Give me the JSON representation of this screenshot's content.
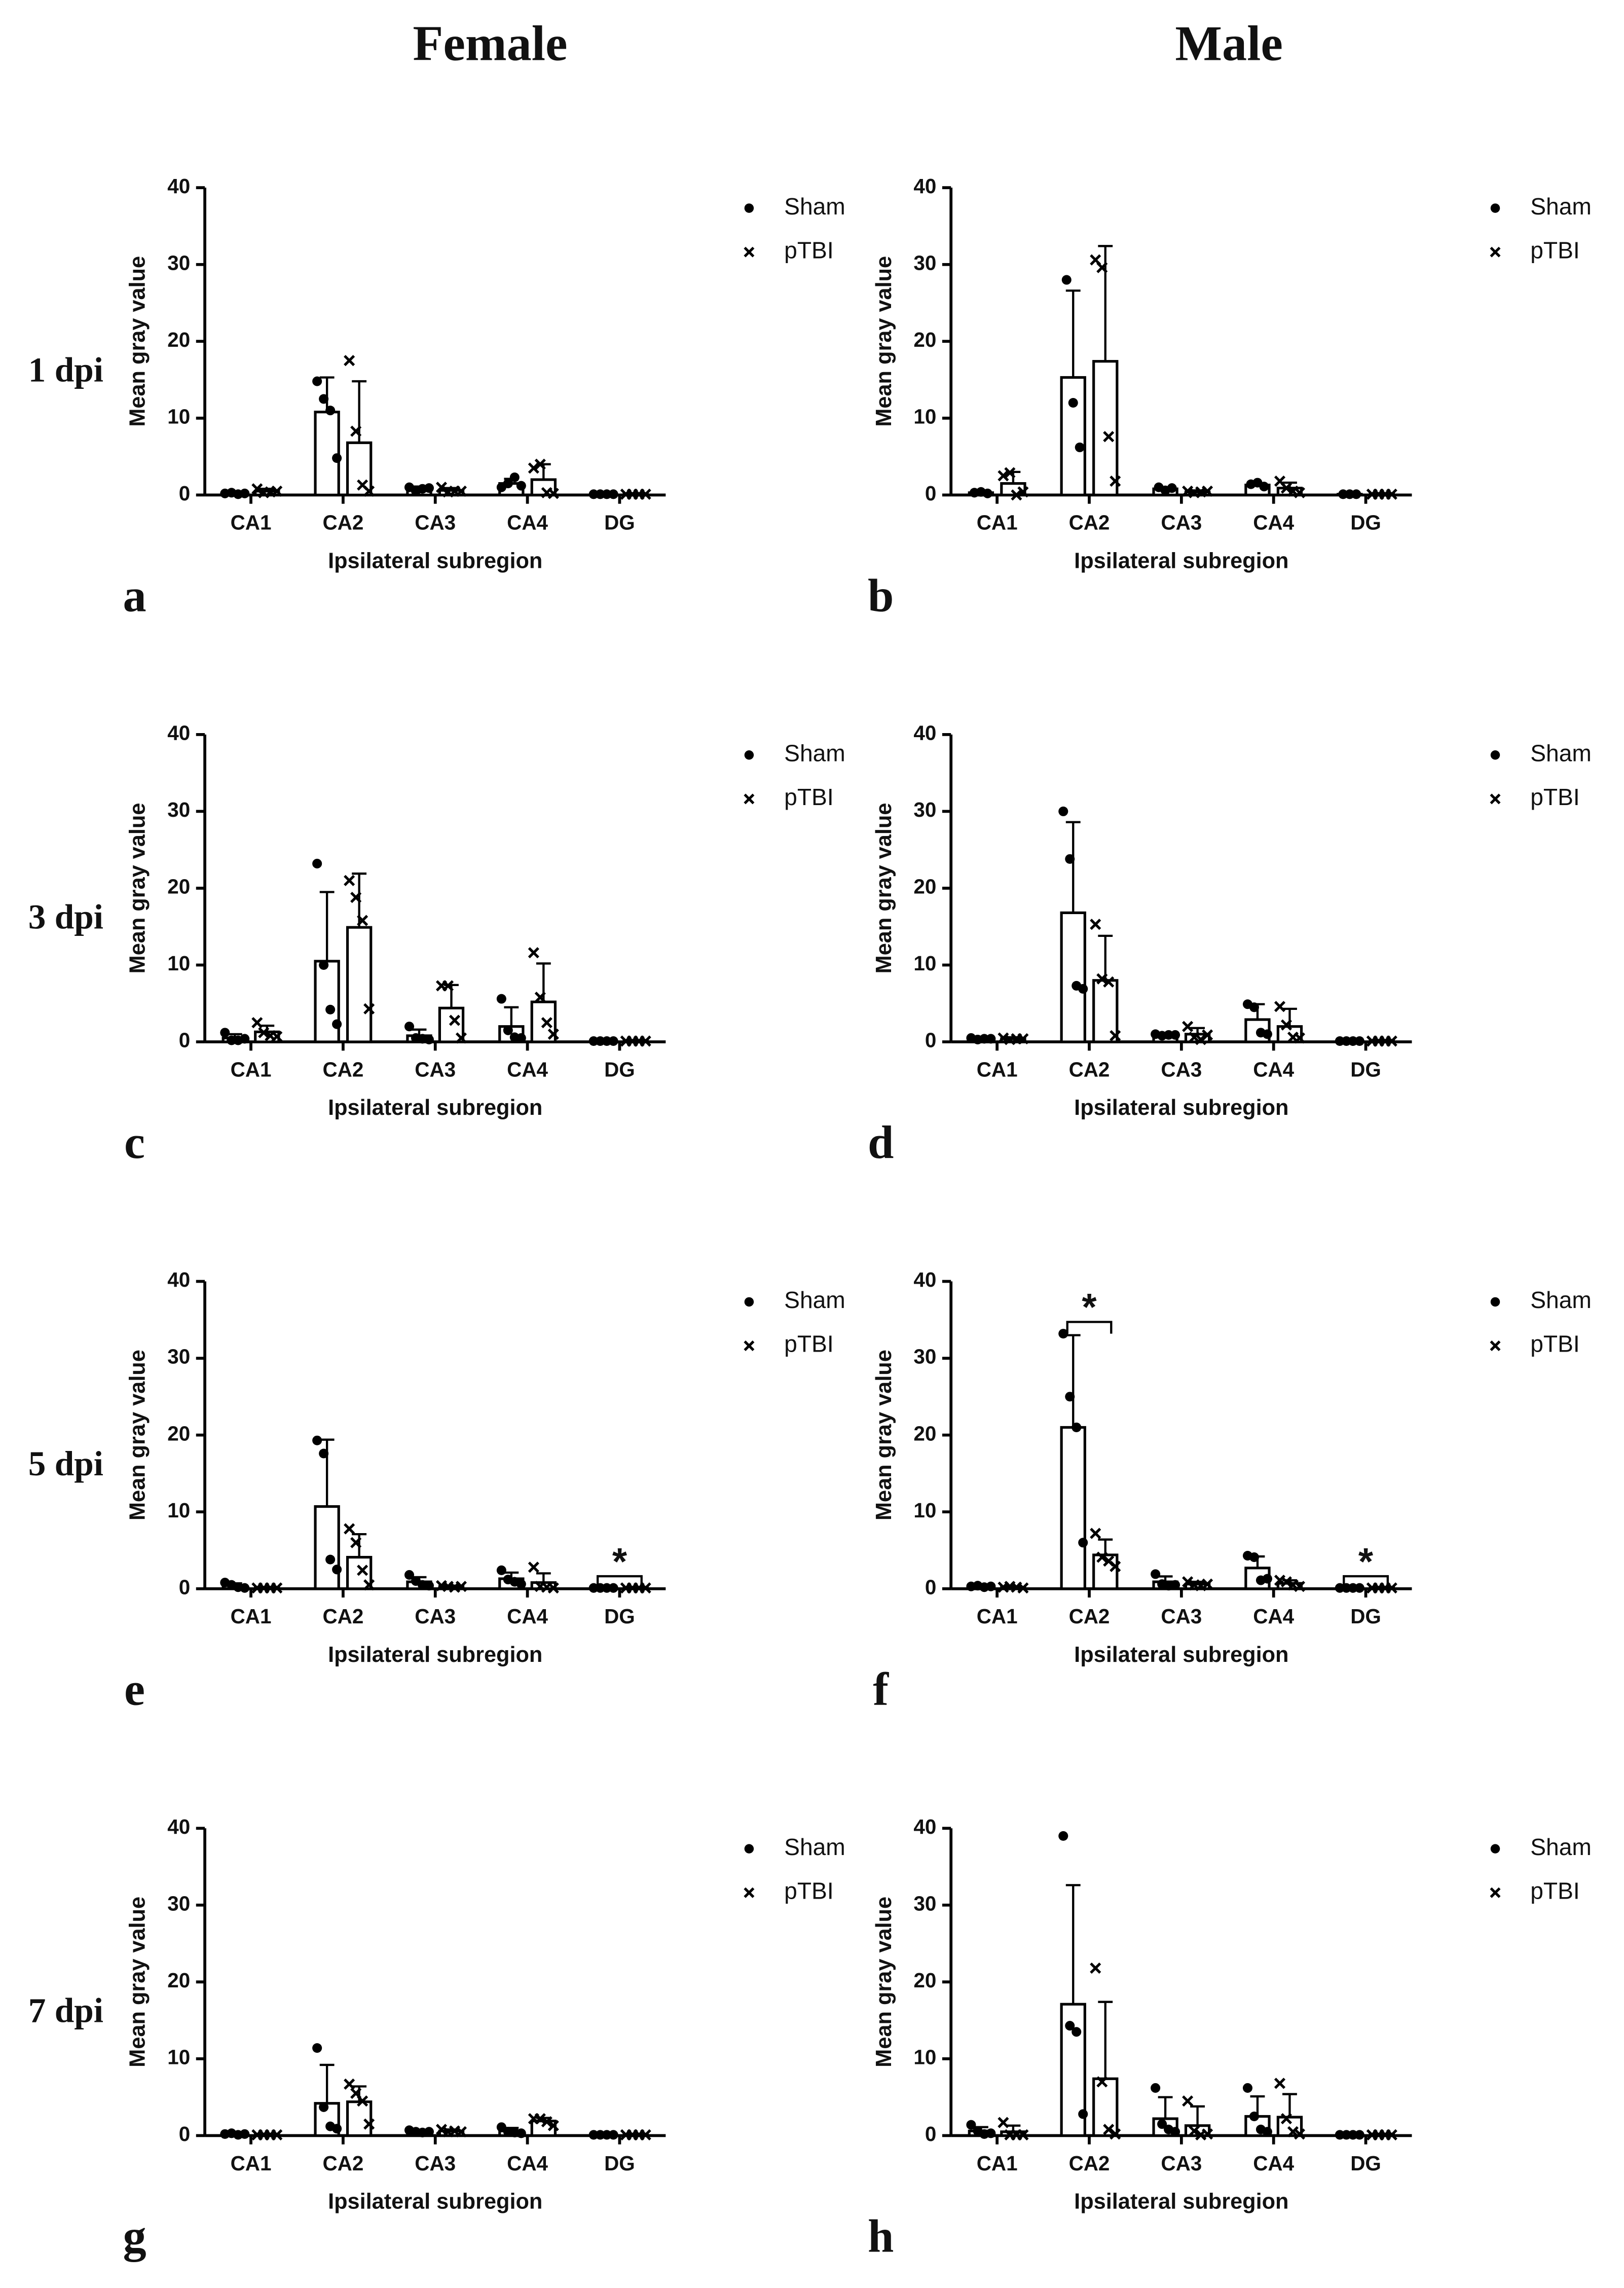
{
  "column_titles": [
    "Female",
    "Male"
  ],
  "row_labels": [
    "1 dpi",
    "3 dpi",
    "5 dpi",
    "7 dpi"
  ],
  "chart_data": [
    {
      "type": "bar",
      "panel": "a",
      "xlabel": "Ipsilateral subregion",
      "ylabel": "Mean gray value",
      "categories": [
        "CA1",
        "CA2",
        "CA3",
        "CA4",
        "DG"
      ],
      "ylim": [
        0,
        40
      ],
      "yticks": [
        0,
        10,
        20,
        30,
        40
      ],
      "series": [
        {
          "name": "Sham",
          "marker": "circle",
          "color": "#000000",
          "values": [
            0.2,
            10.8,
            0.8,
            1.5,
            0.1
          ],
          "errors": [
            0.1,
            4.5,
            0.3,
            0.6,
            0
          ],
          "points": [
            [
              0.2,
              0.3,
              0.1,
              0.2
            ],
            [
              14.8,
              12.5,
              11,
              4.8
            ],
            [
              1,
              0.5,
              0.8,
              0.9
            ],
            [
              1,
              1.5,
              2.3,
              1.2
            ],
            [
              0.1,
              0.1,
              0.1,
              0.1
            ]
          ]
        },
        {
          "name": "pTBI",
          "marker": "x",
          "color": "#000000",
          "values": [
            0.5,
            6.8,
            0.6,
            2,
            0.1
          ],
          "errors": [
            0.3,
            8,
            0.3,
            2,
            0
          ],
          "points": [
            [
              0.8,
              0.3,
              0.4,
              0.5
            ],
            [
              17.5,
              8.3,
              1.3,
              0.5
            ],
            [
              1,
              0.4,
              0.5,
              0.5
            ],
            [
              3.5,
              4,
              0.3,
              0.2
            ],
            [
              0.1,
              0.1,
              0.1,
              0.1
            ]
          ]
        }
      ],
      "annotations": []
    },
    {
      "type": "bar",
      "panel": "b",
      "xlabel": "Ipsilateral subregion",
      "ylabel": "Mean gray value",
      "categories": [
        "CA1",
        "CA2",
        "CA3",
        "CA4",
        "DG"
      ],
      "ylim": [
        0,
        40
      ],
      "yticks": [
        0,
        10,
        20,
        30,
        40
      ],
      "series": [
        {
          "name": "Sham",
          "marker": "circle",
          "color": "#000000",
          "values": [
            0.3,
            15.3,
            0.8,
            1.3,
            0.1
          ],
          "errors": [
            0.1,
            11.3,
            0.2,
            0.2,
            0
          ],
          "points": [
            [
              0.3,
              0.4,
              0.2
            ],
            [
              28,
              12,
              6.2
            ],
            [
              1,
              0.6,
              0.9
            ],
            [
              1.4,
              1.6,
              1.1
            ],
            [
              0.1,
              0.1,
              0.1
            ]
          ]
        },
        {
          "name": "pTBI",
          "marker": "x",
          "color": "#000000",
          "values": [
            1.5,
            17.4,
            0.4,
            0.9,
            0.1
          ],
          "errors": [
            1.5,
            15,
            0.2,
            0.7,
            0
          ],
          "points": [
            [
              2.5,
              2.9,
              0,
              0.4
            ],
            [
              30.6,
              29.6,
              7.6,
              1.8
            ],
            [
              0.5,
              0.3,
              0.4,
              0.5
            ],
            [
              1.8,
              0.9,
              0.5,
              0.3
            ],
            [
              0.1,
              0.1,
              0.1,
              0.1
            ]
          ]
        }
      ],
      "annotations": []
    },
    {
      "type": "bar",
      "panel": "c",
      "xlabel": "Ipsilateral subregion",
      "ylabel": "Mean gray value",
      "categories": [
        "CA1",
        "CA2",
        "CA3",
        "CA4",
        "DG"
      ],
      "ylim": [
        0,
        40
      ],
      "yticks": [
        0,
        10,
        20,
        30,
        40
      ],
      "series": [
        {
          "name": "Sham",
          "marker": "circle",
          "color": "#000000",
          "values": [
            0.5,
            10.5,
            0.8,
            2,
            0.1
          ],
          "errors": [
            0.5,
            9,
            0.8,
            2.5,
            0
          ],
          "points": [
            [
              1.2,
              0.2,
              0.2,
              0.4
            ],
            [
              23.2,
              10,
              4.2,
              2.3
            ],
            [
              2,
              0.5,
              0.4,
              0.3
            ],
            [
              5.6,
              1.5,
              0.6,
              0.5
            ],
            [
              0.1,
              0.1,
              0.1,
              0.1
            ]
          ]
        },
        {
          "name": "pTBI",
          "marker": "x",
          "color": "#000000",
          "values": [
            1.3,
            14.9,
            4.4,
            5.2,
            0.1
          ],
          "errors": [
            0.8,
            7,
            3,
            5,
            0
          ],
          "points": [
            [
              2.5,
              1.2,
              0.8,
              0.7
            ],
            [
              21,
              18.8,
              15.8,
              4.3
            ],
            [
              7.3,
              7.3,
              2.8,
              0.5
            ],
            [
              11.6,
              5.8,
              2.5,
              1
            ],
            [
              0.1,
              0.1,
              0.1,
              0.1
            ]
          ]
        }
      ],
      "annotations": []
    },
    {
      "type": "bar",
      "panel": "d",
      "xlabel": "Ipsilateral subregion",
      "ylabel": "Mean gray value",
      "categories": [
        "CA1",
        "CA2",
        "CA3",
        "CA4",
        "DG"
      ],
      "ylim": [
        0,
        40
      ],
      "yticks": [
        0,
        10,
        20,
        30,
        40
      ],
      "series": [
        {
          "name": "Sham",
          "marker": "circle",
          "color": "#000000",
          "values": [
            0.4,
            16.8,
            0.9,
            2.9,
            0.1
          ],
          "errors": [
            0.2,
            11.8,
            0.2,
            2,
            0
          ],
          "points": [
            [
              0.5,
              0.3,
              0.4,
              0.4
            ],
            [
              30,
              23.8,
              7.3,
              6.9
            ],
            [
              1,
              0.8,
              0.9,
              0.9
            ],
            [
              4.9,
              4.5,
              1.2,
              1
            ],
            [
              0.1,
              0.1,
              0.1,
              0.1
            ]
          ]
        },
        {
          "name": "pTBI",
          "marker": "x",
          "color": "#000000",
          "values": [
            0.4,
            8,
            1,
            2,
            0.1
          ],
          "errors": [
            0.2,
            5.8,
            0.8,
            2.3,
            0
          ],
          "points": [
            [
              0.5,
              0.3,
              0.4,
              0.4
            ],
            [
              15.3,
              8.2,
              7.8,
              0.8
            ],
            [
              2,
              0.6,
              0.3,
              0.9
            ],
            [
              4.6,
              2.2,
              0.6,
              0.5
            ],
            [
              0.1,
              0.1,
              0.1,
              0.1
            ]
          ]
        }
      ],
      "annotations": []
    },
    {
      "type": "bar",
      "panel": "e",
      "xlabel": "Ipsilateral subregion",
      "ylabel": "Mean gray value",
      "categories": [
        "CA1",
        "CA2",
        "CA3",
        "CA4",
        "DG"
      ],
      "ylim": [
        0,
        40
      ],
      "yticks": [
        0,
        10,
        20,
        30,
        40
      ],
      "series": [
        {
          "name": "Sham",
          "marker": "circle",
          "color": "#000000",
          "values": [
            0.4,
            10.7,
            0.9,
            1.3,
            0.1
          ],
          "errors": [
            0.3,
            8.7,
            0.6,
            0.8,
            0
          ],
          "points": [
            [
              0.8,
              0.5,
              0.2,
              0.1
            ],
            [
              19.3,
              17.6,
              3.8,
              2.5
            ],
            [
              1.8,
              1,
              0.5,
              0.4
            ],
            [
              2.4,
              1.2,
              0.9,
              0.6
            ],
            [
              0.1,
              0.1,
              0.1,
              0.1
            ]
          ]
        },
        {
          "name": "pTBI",
          "marker": "x",
          "color": "#000000",
          "values": [
            0.1,
            4.1,
            0.3,
            0.8,
            0.1
          ],
          "errors": [
            0,
            3,
            0.1,
            1.2,
            0
          ],
          "points": [
            [
              0.1,
              0.1,
              0.1,
              0.1
            ],
            [
              7.8,
              6,
              2.4,
              0.5
            ],
            [
              0.4,
              0.3,
              0.2,
              0.3
            ],
            [
              2.8,
              0.3,
              0.2,
              0.1
            ],
            [
              0.1,
              0.1,
              0.1,
              0.1
            ]
          ]
        }
      ],
      "annotations": [
        {
          "text": "*",
          "category": "DG"
        }
      ]
    },
    {
      "type": "bar",
      "panel": "f",
      "xlabel": "Ipsilateral subregion",
      "ylabel": "Mean gray value",
      "categories": [
        "CA1",
        "CA2",
        "CA3",
        "CA4",
        "DG"
      ],
      "ylim": [
        0,
        40
      ],
      "yticks": [
        0,
        10,
        20,
        30,
        40
      ],
      "series": [
        {
          "name": "Sham",
          "marker": "circle",
          "color": "#000000",
          "values": [
            0.3,
            21,
            0.9,
            2.7,
            0.1
          ],
          "errors": [
            0.1,
            12,
            0.7,
            1.5,
            0
          ],
          "points": [
            [
              0.3,
              0.4,
              0.2,
              0.3
            ],
            [
              33.2,
              25,
              21,
              6
            ],
            [
              1.9,
              0.6,
              0.4,
              0.5
            ],
            [
              4.3,
              4.1,
              1.1,
              1.3
            ],
            [
              0.1,
              0.1,
              0.1,
              0.1
            ]
          ]
        },
        {
          "name": "pTBI",
          "marker": "x",
          "color": "#000000",
          "values": [
            0.2,
            4.4,
            0.6,
            0.7,
            0.1
          ],
          "errors": [
            0.1,
            2,
            0.3,
            0.4,
            0
          ],
          "points": [
            [
              0.2,
              0.3,
              0.2,
              0.1
            ],
            [
              7.2,
              4.1,
              3.6,
              2.9
            ],
            [
              0.9,
              0.5,
              0.4,
              0.6
            ],
            [
              1.1,
              0.9,
              0.5,
              0.3
            ],
            [
              0.1,
              0.1,
              0.1,
              0.1
            ]
          ]
        }
      ],
      "annotations": [
        {
          "text": "*",
          "category": "CA2"
        },
        {
          "text": "*",
          "category": "DG"
        }
      ]
    },
    {
      "type": "bar",
      "panel": "g",
      "xlabel": "Ipsilateral subregion",
      "ylabel": "Mean gray value",
      "categories": [
        "CA1",
        "CA2",
        "CA3",
        "CA4",
        "DG"
      ],
      "ylim": [
        0,
        40
      ],
      "yticks": [
        0,
        10,
        20,
        30,
        40
      ],
      "series": [
        {
          "name": "Sham",
          "marker": "circle",
          "color": "#000000",
          "values": [
            0.2,
            4.2,
            0.5,
            0.6,
            0.1
          ],
          "errors": [
            0.1,
            5,
            0.2,
            0.4,
            0
          ],
          "points": [
            [
              0.2,
              0.3,
              0.1,
              0.2
            ],
            [
              11.4,
              3.7,
              1.2,
              0.9
            ],
            [
              0.7,
              0.5,
              0.4,
              0.5
            ],
            [
              1.1,
              0.5,
              0.4,
              0.3
            ],
            [
              0.1,
              0.1,
              0.1,
              0.1
            ]
          ]
        },
        {
          "name": "pTBI",
          "marker": "x",
          "color": "#000000",
          "values": [
            0.1,
            4.4,
            0.6,
            1.9,
            0.1
          ],
          "errors": [
            0,
            2,
            0.2,
            0.4,
            0
          ],
          "points": [
            [
              0.1,
              0.1,
              0.1,
              0.1
            ],
            [
              6.7,
              5.5,
              4.5,
              1.5
            ],
            [
              0.8,
              0.5,
              0.6,
              0.5
            ],
            [
              2.2,
              2.2,
              1.8,
              1.3
            ],
            [
              0.1,
              0.1,
              0.1,
              0.1
            ]
          ]
        }
      ],
      "annotations": []
    },
    {
      "type": "bar",
      "panel": "h",
      "xlabel": "Ipsilateral subregion",
      "ylabel": "Mean gray value",
      "categories": [
        "CA1",
        "CA2",
        "CA3",
        "CA4",
        "DG"
      ],
      "ylim": [
        0,
        40
      ],
      "yticks": [
        0,
        10,
        20,
        30,
        40
      ],
      "series": [
        {
          "name": "Sham",
          "marker": "circle",
          "color": "#000000",
          "values": [
            0.6,
            17.1,
            2.2,
            2.5,
            0.1
          ],
          "errors": [
            0.5,
            15.5,
            2.8,
            2.6,
            0
          ],
          "points": [
            [
              1.4,
              0.6,
              0.2,
              0.3
            ],
            [
              39,
              14.3,
              13.5,
              2.8
            ],
            [
              6.2,
              1.5,
              0.8,
              0.5
            ],
            [
              6.2,
              2.5,
              0.8,
              0.5
            ],
            [
              0.1,
              0.1,
              0.1,
              0.1
            ]
          ]
        },
        {
          "name": "pTBI",
          "marker": "x",
          "color": "#000000",
          "values": [
            0.5,
            7.4,
            1.3,
            2.4,
            0.1
          ],
          "errors": [
            0.8,
            10,
            2.5,
            3,
            0
          ],
          "points": [
            [
              1.7,
              0.1,
              0.1,
              0.1
            ],
            [
              21.8,
              7,
              0.8,
              0.2
            ],
            [
              4.5,
              0.6,
              0.1,
              0.2
            ],
            [
              6.8,
              2.2,
              0.5,
              0.2
            ],
            [
              0.1,
              0.1,
              0.1,
              0.1
            ]
          ]
        }
      ],
      "annotations": []
    }
  ]
}
